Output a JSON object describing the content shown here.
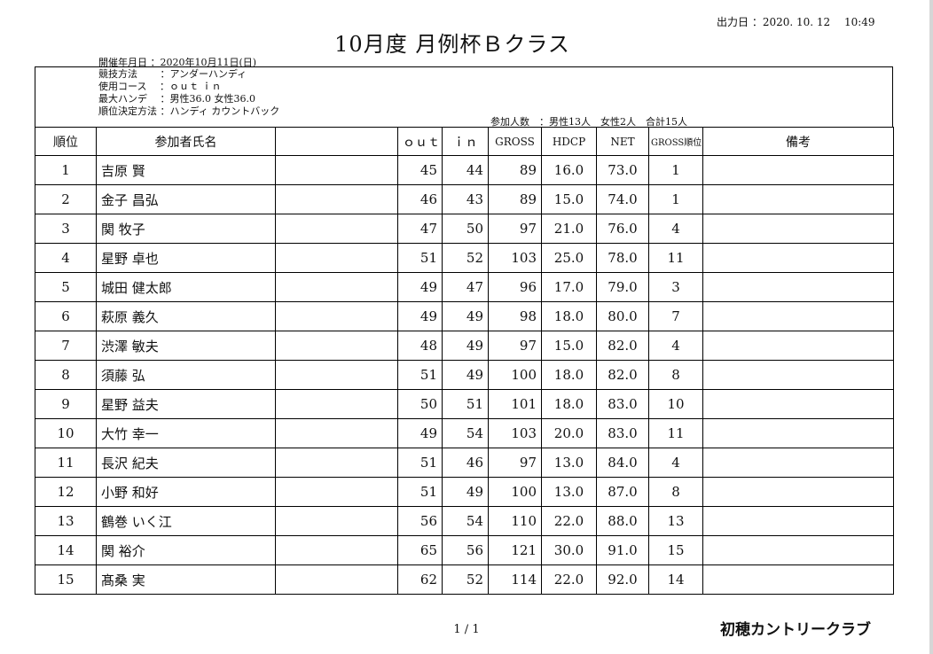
{
  "header": {
    "output_date": "出力日 ：2020. 10. 12　 10:49",
    "title": "10月度 月例杯Ｂクラス",
    "event_date": "開催年月日 ：2020年10月11日(日)"
  },
  "info": {
    "lines": [
      "競技方法　　 ：アンダーハンディ",
      "使用コース　 ：ｏｕｔ ｉｎ",
      "最大ハンデ　 ：男性36.0 女性36.0",
      "順位決定方法 ：ハンディ カウントバック"
    ],
    "participants": "参加人数　：男性13人　女性2人　合計15人"
  },
  "columns": {
    "rank": "順位",
    "name": "参加者氏名",
    "out": "ｏｕｔ",
    "in": "ｉｎ",
    "gross": "GROSS",
    "hdcp": "HDCP",
    "net": "NET",
    "gross_rank": "GROSS順位",
    "remarks": "備考"
  },
  "rows": [
    {
      "rank": "1",
      "name": "吉原 賢",
      "out": "45",
      "in": "44",
      "gross": "89",
      "hdcp": "16.0",
      "net": "73.0",
      "gross_rank": "1",
      "remarks": ""
    },
    {
      "rank": "2",
      "name": "金子 昌弘",
      "out": "46",
      "in": "43",
      "gross": "89",
      "hdcp": "15.0",
      "net": "74.0",
      "gross_rank": "1",
      "remarks": ""
    },
    {
      "rank": "3",
      "name": "関 牧子",
      "out": "47",
      "in": "50",
      "gross": "97",
      "hdcp": "21.0",
      "net": "76.0",
      "gross_rank": "4",
      "remarks": ""
    },
    {
      "rank": "4",
      "name": "星野 卓也",
      "out": "51",
      "in": "52",
      "gross": "103",
      "hdcp": "25.0",
      "net": "78.0",
      "gross_rank": "11",
      "remarks": ""
    },
    {
      "rank": "5",
      "name": "城田 健太郎",
      "out": "49",
      "in": "47",
      "gross": "96",
      "hdcp": "17.0",
      "net": "79.0",
      "gross_rank": "3",
      "remarks": ""
    },
    {
      "rank": "6",
      "name": "萩原 義久",
      "out": "49",
      "in": "49",
      "gross": "98",
      "hdcp": "18.0",
      "net": "80.0",
      "gross_rank": "7",
      "remarks": ""
    },
    {
      "rank": "7",
      "name": "渋澤 敏夫",
      "out": "48",
      "in": "49",
      "gross": "97",
      "hdcp": "15.0",
      "net": "82.0",
      "gross_rank": "4",
      "remarks": ""
    },
    {
      "rank": "8",
      "name": "須藤 弘",
      "out": "51",
      "in": "49",
      "gross": "100",
      "hdcp": "18.0",
      "net": "82.0",
      "gross_rank": "8",
      "remarks": ""
    },
    {
      "rank": "9",
      "name": "星野 益夫",
      "out": "50",
      "in": "51",
      "gross": "101",
      "hdcp": "18.0",
      "net": "83.0",
      "gross_rank": "10",
      "remarks": ""
    },
    {
      "rank": "10",
      "name": "大竹 幸一",
      "out": "49",
      "in": "54",
      "gross": "103",
      "hdcp": "20.0",
      "net": "83.0",
      "gross_rank": "11",
      "remarks": ""
    },
    {
      "rank": "11",
      "name": "長沢 紀夫",
      "out": "51",
      "in": "46",
      "gross": "97",
      "hdcp": "13.0",
      "net": "84.0",
      "gross_rank": "4",
      "remarks": ""
    },
    {
      "rank": "12",
      "name": "小野 和好",
      "out": "51",
      "in": "49",
      "gross": "100",
      "hdcp": "13.0",
      "net": "87.0",
      "gross_rank": "8",
      "remarks": ""
    },
    {
      "rank": "13",
      "name": "鶴巻 いく江",
      "out": "56",
      "in": "54",
      "gross": "110",
      "hdcp": "22.0",
      "net": "88.0",
      "gross_rank": "13",
      "remarks": ""
    },
    {
      "rank": "14",
      "name": "関 裕介",
      "out": "65",
      "in": "56",
      "gross": "121",
      "hdcp": "30.0",
      "net": "91.0",
      "gross_rank": "15",
      "remarks": ""
    },
    {
      "rank": "15",
      "name": "髙桑 実",
      "out": "62",
      "in": "52",
      "gross": "114",
      "hdcp": "22.0",
      "net": "92.0",
      "gross_rank": "14",
      "remarks": ""
    }
  ],
  "footer": {
    "page": "1 / 1",
    "club": "初穂カントリークラブ"
  }
}
